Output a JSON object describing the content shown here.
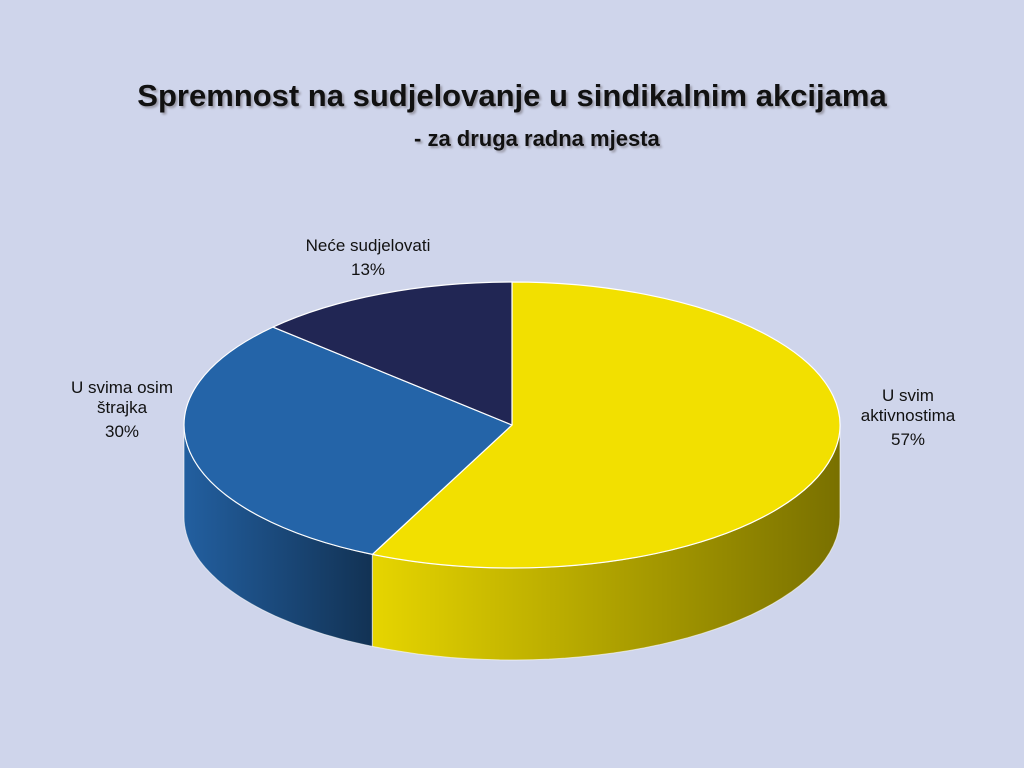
{
  "chart_data": {
    "type": "pie",
    "title": "Spremnost na sudjelovanje u sindikalnim akcijama",
    "subtitle": "- za druga radna mjesta",
    "categories": [
      "U svim aktivnostima",
      "U svima osim štrajka",
      "Neće sudjelovati"
    ],
    "values": [
      57,
      30,
      13
    ],
    "value_labels": [
      "57%",
      "30%",
      "13%"
    ],
    "colors": [
      "#f2e000",
      "#2464a8",
      "#212654"
    ]
  }
}
